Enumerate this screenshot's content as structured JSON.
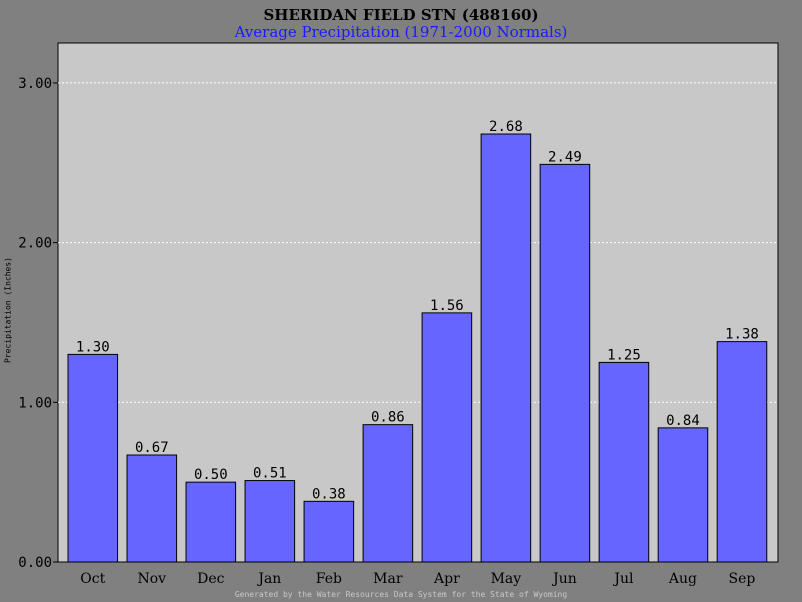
{
  "title": "SHERIDAN FIELD STN (488160)",
  "subtitle": "Average Precipitation (1971-2000 Normals)",
  "footer": "Generated by the Water Resources Data System for the State of Wyoming",
  "colors": {
    "background": "#808080",
    "plot_area": "#c8c8c8",
    "bar_fill": "#6666ff",
    "subtitle": "#1a1aff"
  },
  "chart_data": {
    "type": "bar",
    "title": "SHERIDAN FIELD STN (488160)",
    "subtitle": "Average Precipitation (1971-2000 Normals)",
    "xlabel": "",
    "ylabel": "Precipitation (Inches)",
    "categories": [
      "Oct",
      "Nov",
      "Dec",
      "Jan",
      "Feb",
      "Mar",
      "Apr",
      "May",
      "Jun",
      "Jul",
      "Aug",
      "Sep"
    ],
    "values": [
      1.3,
      0.67,
      0.5,
      0.51,
      0.38,
      0.86,
      1.56,
      2.68,
      2.49,
      1.25,
      0.84,
      1.38
    ],
    "value_labels": [
      "1.30",
      "0.67",
      "0.50",
      "0.51",
      "0.38",
      "0.86",
      "1.56",
      "2.68",
      "2.49",
      "1.25",
      "0.84",
      "1.38"
    ],
    "yticks": [
      0,
      1,
      2,
      3
    ],
    "ytick_labels": [
      "0.00",
      "1.00",
      "2.00",
      "3.00"
    ],
    "ylim": [
      0,
      3.0
    ],
    "grid": true,
    "legend": false
  }
}
